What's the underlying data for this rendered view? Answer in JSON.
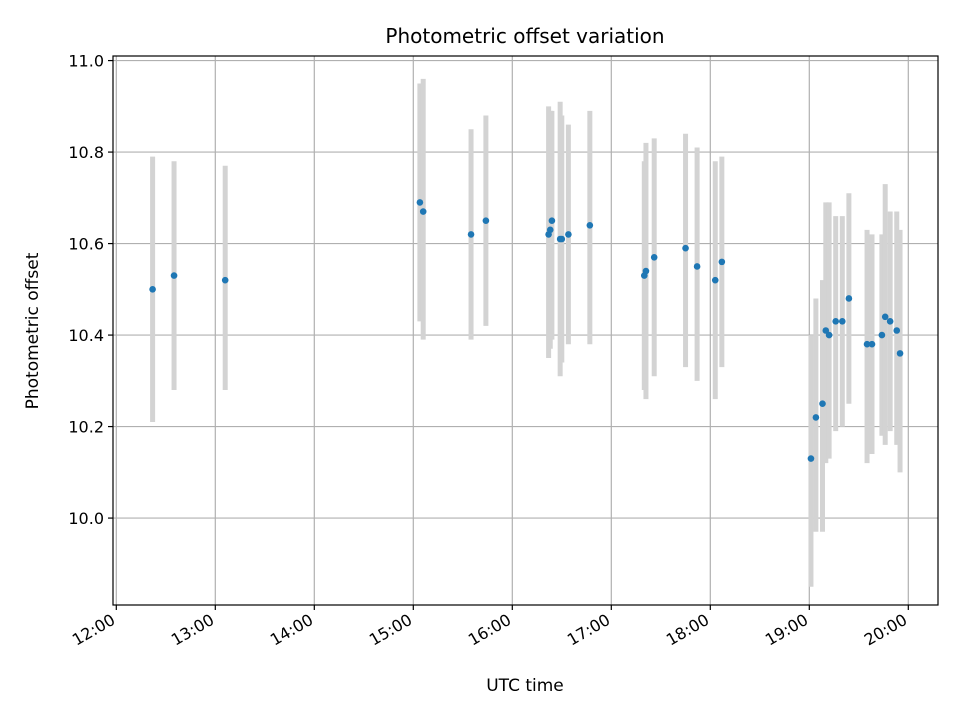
{
  "chart_data": {
    "type": "scatter",
    "title": "Photometric offset variation",
    "xlabel": "UTC time",
    "ylabel": "Photometric offset",
    "x_tick_labels": [
      "12:00",
      "13:00",
      "14:00",
      "15:00",
      "16:00",
      "17:00",
      "18:00",
      "19:00",
      "20:00"
    ],
    "y_tick_labels": [
      "10.0",
      "10.2",
      "10.4",
      "10.6",
      "10.8",
      "11.0"
    ],
    "y_ticks": [
      10.0,
      10.2,
      10.4,
      10.6,
      10.8,
      11.0
    ],
    "xlim": [
      "11:58",
      "20:18"
    ],
    "ylim": [
      9.81,
      11.01
    ],
    "grid": true,
    "point_color": "#1f77b4",
    "errorbar_color": "#d3d3d3",
    "points": [
      {
        "x": "12:22",
        "y": 10.5,
        "ylow": 10.21,
        "yhigh": 10.79
      },
      {
        "x": "12:35",
        "y": 10.53,
        "ylow": 10.28,
        "yhigh": 10.78
      },
      {
        "x": "13:06",
        "y": 10.52,
        "ylow": 10.28,
        "yhigh": 10.77
      },
      {
        "x": "15:04",
        "y": 10.69,
        "ylow": 10.43,
        "yhigh": 10.95
      },
      {
        "x": "15:06",
        "y": 10.67,
        "ylow": 10.39,
        "yhigh": 10.96
      },
      {
        "x": "15:35",
        "y": 10.62,
        "ylow": 10.39,
        "yhigh": 10.85
      },
      {
        "x": "15:44",
        "y": 10.65,
        "ylow": 10.42,
        "yhigh": 10.88
      },
      {
        "x": "16:22",
        "y": 10.62,
        "ylow": 10.35,
        "yhigh": 10.9
      },
      {
        "x": "16:23",
        "y": 10.63,
        "ylow": 10.37,
        "yhigh": 10.89
      },
      {
        "x": "16:24",
        "y": 10.65,
        "ylow": 10.39,
        "yhigh": 10.89
      },
      {
        "x": "16:29",
        "y": 10.61,
        "ylow": 10.31,
        "yhigh": 10.91
      },
      {
        "x": "16:30",
        "y": 10.61,
        "ylow": 10.34,
        "yhigh": 10.88
      },
      {
        "x": "16:34",
        "y": 10.62,
        "ylow": 10.38,
        "yhigh": 10.86
      },
      {
        "x": "16:47",
        "y": 10.64,
        "ylow": 10.38,
        "yhigh": 10.89
      },
      {
        "x": "17:20",
        "y": 10.53,
        "ylow": 10.28,
        "yhigh": 10.78
      },
      {
        "x": "17:21",
        "y": 10.54,
        "ylow": 10.26,
        "yhigh": 10.82
      },
      {
        "x": "17:26",
        "y": 10.57,
        "ylow": 10.31,
        "yhigh": 10.83
      },
      {
        "x": "17:45",
        "y": 10.59,
        "ylow": 10.33,
        "yhigh": 10.84
      },
      {
        "x": "17:52",
        "y": 10.55,
        "ylow": 10.3,
        "yhigh": 10.81
      },
      {
        "x": "18:03",
        "y": 10.52,
        "ylow": 10.26,
        "yhigh": 10.78
      },
      {
        "x": "18:07",
        "y": 10.56,
        "ylow": 10.33,
        "yhigh": 10.79
      },
      {
        "x": "19:01",
        "y": 10.13,
        "ylow": 9.85,
        "yhigh": 10.4
      },
      {
        "x": "19:04",
        "y": 10.22,
        "ylow": 9.97,
        "yhigh": 10.48
      },
      {
        "x": "19:08",
        "y": 10.25,
        "ylow": 9.97,
        "yhigh": 10.52
      },
      {
        "x": "19:10",
        "y": 10.41,
        "ylow": 10.12,
        "yhigh": 10.69
      },
      {
        "x": "19:12",
        "y": 10.4,
        "ylow": 10.13,
        "yhigh": 10.69
      },
      {
        "x": "19:16",
        "y": 10.43,
        "ylow": 10.19,
        "yhigh": 10.66
      },
      {
        "x": "19:20",
        "y": 10.43,
        "ylow": 10.2,
        "yhigh": 10.66
      },
      {
        "x": "19:24",
        "y": 10.48,
        "ylow": 10.25,
        "yhigh": 10.71
      },
      {
        "x": "19:35",
        "y": 10.38,
        "ylow": 10.12,
        "yhigh": 10.63
      },
      {
        "x": "19:38",
        "y": 10.38,
        "ylow": 10.14,
        "yhigh": 10.62
      },
      {
        "x": "19:44",
        "y": 10.4,
        "ylow": 10.18,
        "yhigh": 10.62
      },
      {
        "x": "19:46",
        "y": 10.44,
        "ylow": 10.16,
        "yhigh": 10.73
      },
      {
        "x": "19:49",
        "y": 10.43,
        "ylow": 10.19,
        "yhigh": 10.67
      },
      {
        "x": "19:53",
        "y": 10.41,
        "ylow": 10.16,
        "yhigh": 10.67
      },
      {
        "x": "19:55",
        "y": 10.36,
        "ylow": 10.1,
        "yhigh": 10.63
      }
    ]
  }
}
